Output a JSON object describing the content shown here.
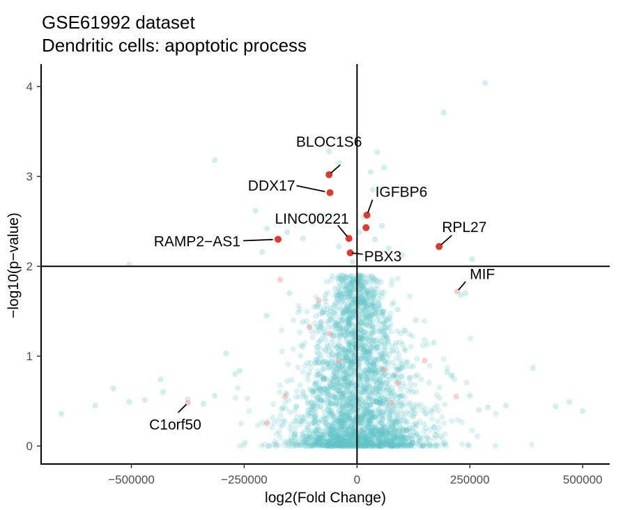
{
  "chart_data": {
    "type": "scatter",
    "title": "GSE61992 dataset",
    "subtitle": "Dendritic cells: apoptotic process",
    "xlabel": "log2(Fold Change)",
    "ylabel": "−log10(p−value)",
    "xlim": [
      -700000,
      560000
    ],
    "ylim": [
      -0.2,
      4.25
    ],
    "x_ticks": [
      -500000,
      -250000,
      0,
      250000,
      500000
    ],
    "x_tick_labels": [
      "−500000",
      "−250000",
      "0",
      "250000",
      "500000"
    ],
    "y_ticks": [
      0,
      1,
      2,
      3,
      4
    ],
    "y_tick_labels": [
      "0",
      "1",
      "2",
      "3",
      "4"
    ],
    "thresholds": {
      "x": 0,
      "y": 2
    },
    "grid": false,
    "colors": {
      "background_points": "#5ec4c8",
      "highlight_points": "#e03a2c",
      "faint_highlight_points": "#f08a80",
      "reference_lines": "#000000"
    },
    "highlighted_genes": [
      {
        "label": "BLOC1S6",
        "x": -62000,
        "y": 3.02,
        "significant": true
      },
      {
        "label": "DDX17",
        "x": -60000,
        "y": 2.82,
        "significant": true
      },
      {
        "label": "IGFBP6",
        "x": 22000,
        "y": 2.57,
        "significant": true
      },
      {
        "label": "LINC00221",
        "x": -18000,
        "y": 2.31,
        "significant": true
      },
      {
        "label": "RAMP2−AS1",
        "x": -175000,
        "y": 2.3,
        "significant": true
      },
      {
        "label": "RPL27",
        "x": 182000,
        "y": 2.22,
        "significant": true
      },
      {
        "label": "PBX3",
        "x": -15000,
        "y": 2.15,
        "significant": true
      },
      {
        "label": "MIF",
        "x": 222000,
        "y": 1.72,
        "significant": false
      },
      {
        "label": "C1orf50",
        "x": -375000,
        "y": 0.48,
        "significant": false
      }
    ],
    "extra_significant_points": [
      {
        "x": 20000,
        "y": 2.43
      }
    ],
    "background_points": [
      {
        "x": 284000,
        "y": 4.04
      },
      {
        "x": 192000,
        "y": 3.71
      },
      {
        "x": -315000,
        "y": 3.18
      },
      {
        "x": -62000,
        "y": 3.28
      },
      {
        "x": 45000,
        "y": 3.27
      },
      {
        "x": -40000,
        "y": 3.15
      },
      {
        "x": 30000,
        "y": 3.05
      },
      {
        "x": 60000,
        "y": 3.1
      },
      {
        "x": -225000,
        "y": 2.62
      },
      {
        "x": -200000,
        "y": 2.42
      },
      {
        "x": -155000,
        "y": 2.38
      },
      {
        "x": -120000,
        "y": 2.31
      },
      {
        "x": -100000,
        "y": 2.48
      },
      {
        "x": -75000,
        "y": 2.55
      },
      {
        "x": 15000,
        "y": 2.55
      },
      {
        "x": 35000,
        "y": 2.85
      },
      {
        "x": 55000,
        "y": 2.45
      },
      {
        "x": 40000,
        "y": 2.3
      },
      {
        "x": 70000,
        "y": 2.2
      },
      {
        "x": 100000,
        "y": 2.12
      },
      {
        "x": -505000,
        "y": 2.02
      },
      {
        "x": -210000,
        "y": 2.16
      },
      {
        "x": 255000,
        "y": 2.08
      },
      {
        "x": -40000,
        "y": 2.22
      },
      {
        "x": 5000,
        "y": 2.38
      },
      {
        "x": -10000,
        "y": 2.05
      },
      {
        "x": 240000,
        "y": 1.7
      },
      {
        "x": 230000,
        "y": 1.68
      },
      {
        "x": 390000,
        "y": 0.87
      },
      {
        "x": 440000,
        "y": 0.44
      },
      {
        "x": 470000,
        "y": 0.49
      },
      {
        "x": 500000,
        "y": 0.39
      },
      {
        "x": 330000,
        "y": 0.45
      },
      {
        "x": 290000,
        "y": 0.43
      },
      {
        "x": -655000,
        "y": 0.36
      },
      {
        "x": -580000,
        "y": 0.45
      },
      {
        "x": -540000,
        "y": 0.64
      },
      {
        "x": -505000,
        "y": 0.49
      },
      {
        "x": -470000,
        "y": 0.51
      },
      {
        "x": -430000,
        "y": 0.6
      },
      {
        "x": -435000,
        "y": 0.74
      },
      {
        "x": -375000,
        "y": 0.52
      },
      {
        "x": -340000,
        "y": 0.47
      },
      {
        "x": -315000,
        "y": 0.56
      },
      {
        "x": -290000,
        "y": 1.03
      },
      {
        "x": -270000,
        "y": 0.8
      },
      {
        "x": -260000,
        "y": 0.84
      },
      {
        "x": -200000,
        "y": 1.45
      },
      {
        "x": -150000,
        "y": 1.7
      },
      {
        "x": -120000,
        "y": 1.38
      },
      {
        "x": -90000,
        "y": 1.55
      },
      {
        "x": 90000,
        "y": 1.52
      },
      {
        "x": 130000,
        "y": 1.4
      },
      {
        "x": 170000,
        "y": 1.15
      },
      {
        "x": 200000,
        "y": 0.82
      },
      {
        "x": 250000,
        "y": 0.56
      },
      {
        "x": 270000,
        "y": 0.4
      }
    ],
    "faint_highlight_points": [
      {
        "x": -170000,
        "y": 1.85
      },
      {
        "x": -105000,
        "y": 1.32
      },
      {
        "x": -85000,
        "y": 1.62
      },
      {
        "x": -60000,
        "y": 1.25
      },
      {
        "x": -40000,
        "y": 0.95
      },
      {
        "x": 60000,
        "y": 0.85
      },
      {
        "x": 90000,
        "y": 0.7
      },
      {
        "x": 150000,
        "y": 0.95
      },
      {
        "x": -160000,
        "y": 0.55
      },
      {
        "x": -200000,
        "y": 0.25
      },
      {
        "x": 75000,
        "y": 0.48
      },
      {
        "x": 220000,
        "y": 0.55
      }
    ],
    "cloud": {
      "n": 2600,
      "x_center": 0,
      "x_spread": 60000,
      "y_max": 1.9
    }
  }
}
